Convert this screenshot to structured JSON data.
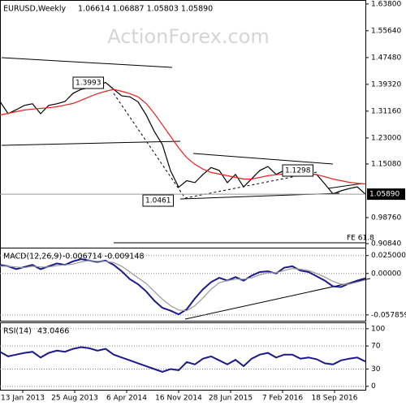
{
  "chart_data": [
    {
      "type": "line",
      "title": "EURUSD,Weekly",
      "subtitle": "1.06614 1.06887 1.05803 1.05890",
      "watermark": "ActionForex.com",
      "annotations": [
        "1.3993",
        "1.0461",
        "1.1298",
        "FE 61.8"
      ],
      "last_price_label": "1.05890",
      "x": [
        0,
        5,
        10,
        15,
        20,
        25,
        30,
        35,
        40,
        45,
        50,
        55,
        60,
        65,
        70,
        75,
        80,
        85,
        90,
        95,
        100,
        105,
        110,
        115,
        120,
        125,
        130,
        135,
        140,
        145,
        150,
        155,
        160,
        165,
        170,
        175,
        180,
        185,
        190,
        195,
        200,
        205,
        210,
        215,
        220,
        225
      ],
      "xlim": [
        0,
        225
      ],
      "ylim": [
        0.896,
        1.65
      ],
      "grid": false,
      "yticks": [
        {
          "value": 1.638,
          "label": "1.63800"
        },
        {
          "value": 1.5564,
          "label": "1.55640"
        },
        {
          "value": 1.4748,
          "label": "1.47480"
        },
        {
          "value": 1.3932,
          "label": "1.39320"
        },
        {
          "value": 1.3116,
          "label": "1.31160"
        },
        {
          "value": 1.23,
          "label": "1.23000"
        },
        {
          "value": 1.1508,
          "label": "1.15080"
        },
        {
          "value": 0.9876,
          "label": "0.98760"
        },
        {
          "value": 0.9084,
          "label": "0.90840"
        }
      ],
      "series": [
        {
          "color": "#000000",
          "values": [
            1.341,
            1.304,
            1.316,
            1.329,
            1.334,
            1.304,
            1.329,
            1.334,
            1.341,
            1.366,
            1.378,
            1.383,
            1.39,
            1.399,
            1.378,
            1.358,
            1.355,
            1.34,
            1.3,
            1.25,
            1.21,
            1.13,
            1.08,
            1.1,
            1.094,
            1.119,
            1.14,
            1.131,
            1.094,
            1.119,
            1.081,
            1.106,
            1.131,
            1.143,
            1.119,
            1.131,
            1.131,
            1.119,
            1.119,
            1.119,
            1.09,
            1.06,
            1.069,
            1.076,
            1.081,
            1.0589
          ]
        },
        {
          "color": "#e8201c",
          "values": [
            1.3,
            1.305,
            1.31,
            1.315,
            1.318,
            1.32,
            1.322,
            1.325,
            1.33,
            1.335,
            1.345,
            1.355,
            1.365,
            1.372,
            1.378,
            1.372,
            1.365,
            1.355,
            1.335,
            1.305,
            1.27,
            1.235,
            1.2,
            1.17,
            1.15,
            1.135,
            1.125,
            1.12,
            1.115,
            1.11,
            1.105,
            1.105,
            1.11,
            1.115,
            1.118,
            1.12,
            1.122,
            1.122,
            1.12,
            1.118,
            1.112,
            1.105,
            1.1,
            1.095,
            1.092,
            1.09
          ]
        }
      ]
    },
    {
      "type": "line",
      "title": "MACD(12,26,9)",
      "subtitle": "-0.006714 -0.009148",
      "x": [
        0,
        5,
        10,
        15,
        20,
        25,
        30,
        35,
        40,
        45,
        50,
        55,
        60,
        65,
        70,
        75,
        80,
        85,
        90,
        95,
        100,
        105,
        110,
        115,
        120,
        125,
        130,
        135,
        140,
        145,
        150,
        155,
        160,
        165,
        170,
        175,
        180,
        185,
        190,
        195,
        200,
        205,
        210,
        215,
        220,
        225
      ],
      "xlim": [
        0,
        225
      ],
      "ylim": [
        -0.066,
        0.036
      ],
      "grid": true,
      "yticks": [
        {
          "value": 0.025,
          "label": "0.025000"
        },
        {
          "value": 0,
          "label": "0.00000"
        },
        {
          "value": -0.057859,
          "label": "-0.057859"
        }
      ],
      "series": [
        {
          "color": "#1a1a8c",
          "values": [
            0.012,
            0.01,
            0.006,
            0.009,
            0.012,
            0.006,
            0.01,
            0.014,
            0.012,
            0.017,
            0.02,
            0.018,
            0.016,
            0.018,
            0.012,
            0.003,
            -0.008,
            -0.015,
            -0.025,
            -0.038,
            -0.048,
            -0.052,
            -0.057,
            -0.05,
            -0.035,
            -0.022,
            -0.012,
            -0.006,
            -0.01,
            -0.005,
            -0.01,
            -0.003,
            0.002,
            0.003,
            0,
            0.008,
            0.01,
            0.004,
            0.002,
            -0.004,
            -0.01,
            -0.018,
            -0.019,
            -0.014,
            -0.01,
            -0.0067
          ]
        },
        {
          "color": "#999999",
          "values": [
            0.01,
            0.01,
            0.009,
            0.008,
            0.01,
            0.009,
            0.009,
            0.011,
            0.012,
            0.013,
            0.016,
            0.018,
            0.017,
            0.017,
            0.015,
            0.01,
            0.002,
            -0.006,
            -0.014,
            -0.025,
            -0.036,
            -0.045,
            -0.051,
            -0.052,
            -0.045,
            -0.034,
            -0.022,
            -0.013,
            -0.01,
            -0.008,
            -0.008,
            -0.006,
            -0.002,
            0.001,
            0.001,
            0.004,
            0.007,
            0.006,
            0.004,
            0,
            -0.005,
            -0.011,
            -0.015,
            -0.015,
            -0.012,
            -0.0091
          ]
        }
      ]
    },
    {
      "type": "line",
      "title": "RSI(14)",
      "subtitle": "43.0466",
      "x": [
        0,
        5,
        10,
        15,
        20,
        25,
        30,
        35,
        40,
        45,
        50,
        55,
        60,
        65,
        70,
        75,
        80,
        85,
        90,
        95,
        100,
        105,
        110,
        115,
        120,
        125,
        130,
        135,
        140,
        145,
        150,
        155,
        160,
        165,
        170,
        175,
        180,
        185,
        190,
        195,
        200,
        205,
        210,
        215,
        220,
        225
      ],
      "xlim": [
        0,
        225
      ],
      "ylim": [
        -6,
        111
      ],
      "grid": true,
      "yticks": [
        100,
        70,
        30,
        0
      ],
      "xticks": [
        {
          "value": 14,
          "label": "13 Jan 2013"
        },
        {
          "value": 46,
          "label": "25 Aug 2013"
        },
        {
          "value": 78,
          "label": "6 Apr 2014"
        },
        {
          "value": 110,
          "label": "16 Nov 2014"
        },
        {
          "value": 142,
          "label": "28 Jun 2015"
        },
        {
          "value": 174,
          "label": "7 Feb 2016"
        },
        {
          "value": 206,
          "label": "18 Sep 2016"
        }
      ],
      "series": [
        {
          "color": "#1a1a8c",
          "values": [
            60,
            52,
            55,
            58,
            60,
            50,
            58,
            62,
            60,
            65,
            68,
            66,
            62,
            65,
            55,
            50,
            45,
            40,
            35,
            30,
            25,
            30,
            28,
            42,
            38,
            48,
            52,
            45,
            38,
            46,
            35,
            48,
            55,
            58,
            50,
            55,
            55,
            48,
            50,
            47,
            40,
            38,
            45,
            48,
            50,
            43
          ]
        }
      ]
    }
  ]
}
